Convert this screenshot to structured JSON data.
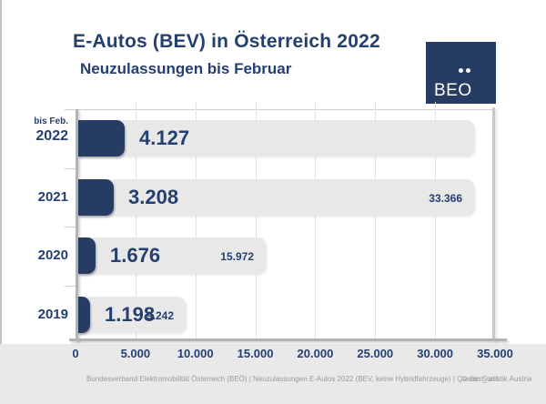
{
  "header": {
    "title": "E-Autos (BEV) in Österreich 2022",
    "subtitle": "Neuzulassungen bis Februar"
  },
  "logo": {
    "text": "BEO"
  },
  "chart_data": {
    "type": "bar",
    "orientation": "horizontal",
    "title": "E-Autos (BEV) in Österreich 2022",
    "subtitle": "Neuzulassungen bis Februar",
    "categories": [
      "2022",
      "2021",
      "2020",
      "2019"
    ],
    "rows": [
      {
        "year": "2022",
        "year_note": "bis Feb.",
        "value": 4127,
        "value_label": "4.127",
        "track_value": 33366,
        "track_label": ""
      },
      {
        "year": "2021",
        "value": 3208,
        "value_label": "3.208",
        "track_value": 33366,
        "track_label": "33.366"
      },
      {
        "year": "2020",
        "value": 1676,
        "value_label": "1.676",
        "track_value": 15972,
        "track_label": "15.972"
      },
      {
        "year": "2019",
        "value": 1198,
        "value_label": "1.198",
        "track_value": 9242,
        "track_label": "9.242"
      }
    ],
    "x_axis": {
      "min": 0,
      "max": 35000,
      "ticks": [
        "0",
        "5.000",
        "10.000",
        "15.000",
        "20.000",
        "25.000",
        "30.000",
        "35.000"
      ]
    },
    "legend": "none",
    "grid": "vertical",
    "colors": {
      "bar": "#263C63",
      "track": "#E8E8E8",
      "text": "#254070",
      "strip": "#E9E9E9"
    }
  },
  "footer": {
    "left": "Bundesverband Elektromobilität Österreich (BEÖ) | Neuzulassungen E-Autos 2022 (BEV, keine Hybridfahrzeuge) | Quelle: Statistik Austria",
    "right": "© com_unit"
  }
}
